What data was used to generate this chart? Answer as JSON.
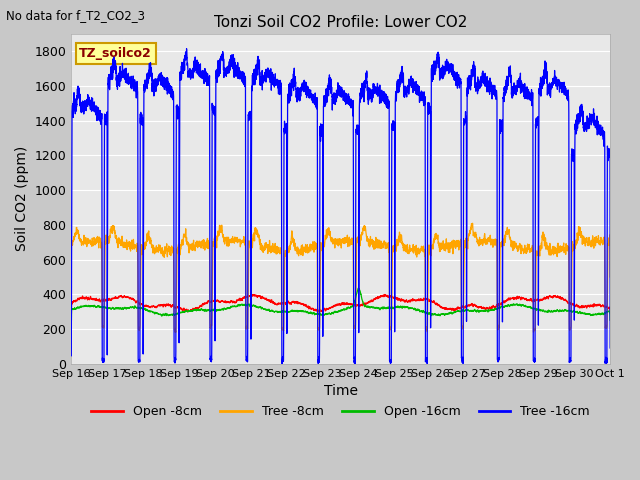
{
  "title": "Tonzi Soil CO2 Profile: Lower CO2",
  "no_data_text": "No data for f_T2_CO2_3",
  "xlabel": "Time",
  "ylabel": "Soil CO2 (ppm)",
  "ylim": [
    0,
    1900
  ],
  "yticks": [
    0,
    200,
    400,
    600,
    800,
    1000,
    1200,
    1400,
    1600,
    1800
  ],
  "x_tick_labels": [
    "Sep 16",
    "Sep 17",
    "Sep 18",
    "Sep 19",
    "Sep 20",
    "Sep 21",
    "Sep 22",
    "Sep 23",
    "Sep 24",
    "Sep 25",
    "Sep 26",
    "Sep 27",
    "Sep 28",
    "Sep 29",
    "Sep 30",
    "Oct 1"
  ],
  "legend_entries": [
    "Open -8cm",
    "Tree -8cm",
    "Open -16cm",
    "Tree -16cm"
  ],
  "legend_colors": [
    "#ff0000",
    "#ffa500",
    "#00bb00",
    "#0000ff"
  ],
  "legend_box_color": "#ffff99",
  "legend_box_edge": "#cc9900",
  "annotation_text": "TZ_soilco2",
  "bg_color": "#e8e8e8",
  "grid_color": "#ffffff",
  "fig_bg_color": "#c8c8c8",
  "line_colors": {
    "open_8cm": "#ff0000",
    "tree_8cm": "#ffa500",
    "open_16cm": "#00bb00",
    "tree_16cm": "#0000ff"
  }
}
